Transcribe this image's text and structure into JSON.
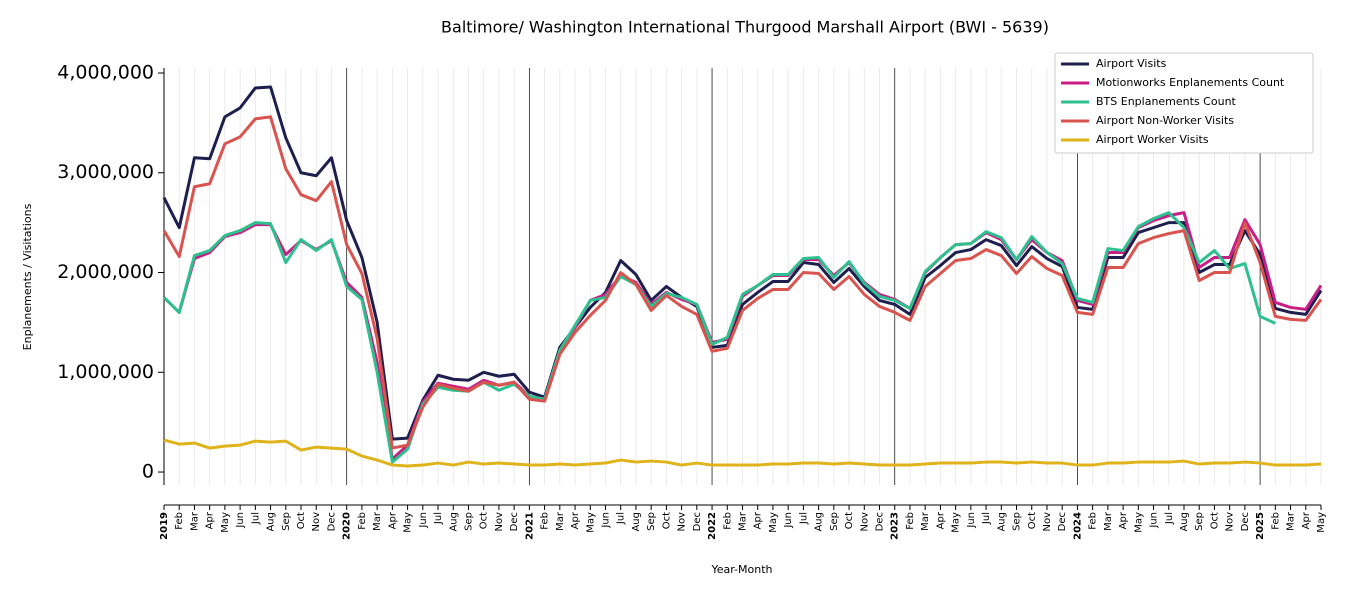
{
  "chart_data": {
    "type": "line",
    "title": "Baltimore/ Washington International Thurgood Marshall Airport (BWI - 5639)",
    "x_label": "Year-Month",
    "y_label": "Enplanements / Visitations",
    "categories": [
      "2019",
      "Feb",
      "Mar",
      "Apr",
      "May",
      "Jun",
      "Jul",
      "Aug",
      "Sep",
      "Oct",
      "Nov",
      "Dec",
      "2020",
      "Feb",
      "Mar",
      "Apr",
      "May",
      "Jun",
      "Jul",
      "Aug",
      "Sep",
      "Oct",
      "Nov",
      "Dec",
      "2021",
      "Feb",
      "Mar",
      "Apr",
      "May",
      "Jun",
      "Jul",
      "Aug",
      "Sep",
      "Oct",
      "Nov",
      "Dec",
      "2022",
      "Feb",
      "Mar",
      "Apr",
      "May",
      "Jun",
      "Jul",
      "Aug",
      "Sep",
      "Oct",
      "Nov",
      "Dec",
      "2023",
      "Feb",
      "Mar",
      "Apr",
      "May",
      "Jun",
      "Jul",
      "Aug",
      "Sep",
      "Oct",
      "Nov",
      "Dec",
      "2024",
      "Feb",
      "Mar",
      "Apr",
      "May",
      "Jun",
      "Jul",
      "Aug",
      "Sep",
      "Oct",
      "Nov",
      "Dec",
      "2025",
      "Feb",
      "Mar",
      "Apr",
      "May"
    ],
    "ylim": [
      -130000,
      4050000
    ],
    "yticks": [
      0,
      {
        "value": 1000000,
        "label": "1,000,000"
      },
      {
        "value": 2000000,
        "label": "2,000,000"
      },
      {
        "value": 3000000,
        "label": "3,000,000"
      },
      {
        "value": 4000000,
        "label": "4,000,000"
      }
    ],
    "grid": true,
    "legend": "upper right",
    "series": [
      {
        "name": "Airport Visits",
        "color": "#1f1f4f",
        "values": [
          2750000,
          2450000,
          3150000,
          3140000,
          3560000,
          3650000,
          3850000,
          3860000,
          3350000,
          3000000,
          2970000,
          3150000,
          2520000,
          2150000,
          1500000,
          330000,
          340000,
          720000,
          970000,
          930000,
          920000,
          1000000,
          960000,
          980000,
          800000,
          750000,
          1250000,
          1450000,
          1650000,
          1800000,
          2120000,
          1980000,
          1720000,
          1860000,
          1750000,
          1660000,
          1250000,
          1270000,
          1680000,
          1800000,
          1910000,
          1910000,
          2100000,
          2080000,
          1900000,
          2040000,
          1860000,
          1720000,
          1680000,
          1580000,
          1950000,
          2070000,
          2200000,
          2230000,
          2330000,
          2270000,
          2070000,
          2260000,
          2140000,
          2060000,
          1650000,
          1630000,
          2150000,
          2150000,
          2400000,
          2450000,
          2500000,
          2500000,
          2000000,
          2080000,
          2080000,
          2420000,
          2180000,
          1640000,
          1600000,
          1580000,
          1820000
        ]
      },
      {
        "name": "Motionworks Enplanements Count",
        "color": "#c81e87",
        "values": [
          1750000,
          1600000,
          2140000,
          2200000,
          2360000,
          2400000,
          2480000,
          2480000,
          2180000,
          2320000,
          2230000,
          2320000,
          1900000,
          1750000,
          1100000,
          130000,
          270000,
          700000,
          890000,
          860000,
          830000,
          920000,
          870000,
          900000,
          760000,
          730000,
          1220000,
          1450000,
          1720000,
          1780000,
          1970000,
          1900000,
          1680000,
          1800000,
          1730000,
          1680000,
          1300000,
          1330000,
          1760000,
          1870000,
          1970000,
          1970000,
          2130000,
          2130000,
          1970000,
          2100000,
          1900000,
          1780000,
          1730000,
          1640000,
          2000000,
          2150000,
          2280000,
          2290000,
          2400000,
          2330000,
          2130000,
          2330000,
          2200000,
          2120000,
          1720000,
          1680000,
          2200000,
          2200000,
          2450000,
          2520000,
          2570000,
          2600000,
          2050000,
          2150000,
          2150000,
          2530000,
          2280000,
          1700000,
          1650000,
          1630000,
          1870000
        ]
      },
      {
        "name": "BTS Enplanements Count",
        "color": "#2ec08e",
        "values": [
          1750000,
          1600000,
          2170000,
          2220000,
          2370000,
          2420000,
          2500000,
          2490000,
          2100000,
          2330000,
          2220000,
          2330000,
          1860000,
          1730000,
          1000000,
          100000,
          230000,
          680000,
          850000,
          820000,
          810000,
          900000,
          820000,
          880000,
          760000,
          730000,
          1220000,
          1470000,
          1720000,
          1750000,
          1960000,
          1880000,
          1660000,
          1790000,
          1750000,
          1680000,
          1280000,
          1350000,
          1780000,
          1870000,
          1980000,
          1980000,
          2140000,
          2150000,
          1950000,
          2110000,
          1890000,
          1760000,
          1720000,
          1640000,
          2010000,
          2150000,
          2280000,
          2290000,
          2410000,
          2350000,
          2130000,
          2360000,
          2200000,
          2090000,
          1740000,
          1700000,
          2240000,
          2220000,
          2460000,
          2540000,
          2600000,
          2450000,
          2100000,
          2220000,
          2040000,
          2090000,
          1560000,
          1490000,
          null,
          null,
          null
        ]
      },
      {
        "name": "Airport Non-Worker Visits",
        "color": "#d9534f",
        "values": [
          2420000,
          2160000,
          2860000,
          2890000,
          3290000,
          3360000,
          3540000,
          3560000,
          3040000,
          2780000,
          2720000,
          2910000,
          2280000,
          1990000,
          1340000,
          240000,
          270000,
          650000,
          880000,
          840000,
          810000,
          900000,
          870000,
          900000,
          730000,
          710000,
          1180000,
          1400000,
          1570000,
          1720000,
          2000000,
          1880000,
          1620000,
          1770000,
          1660000,
          1580000,
          1210000,
          1240000,
          1620000,
          1740000,
          1830000,
          1830000,
          2000000,
          1990000,
          1830000,
          1960000,
          1780000,
          1660000,
          1600000,
          1520000,
          1860000,
          1990000,
          2120000,
          2140000,
          2230000,
          2170000,
          1990000,
          2160000,
          2040000,
          1970000,
          1600000,
          1580000,
          2050000,
          2050000,
          2290000,
          2350000,
          2390000,
          2420000,
          1920000,
          2000000,
          2000000,
          2500000,
          2100000,
          1560000,
          1530000,
          1520000,
          1730000
        ]
      },
      {
        "name": "Airport Worker Visits",
        "color": "#e0b31a",
        "values": [
          320000,
          280000,
          290000,
          240000,
          260000,
          270000,
          310000,
          300000,
          310000,
          220000,
          250000,
          240000,
          230000,
          160000,
          120000,
          70000,
          60000,
          70000,
          90000,
          70000,
          100000,
          80000,
          90000,
          80000,
          70000,
          70000,
          80000,
          70000,
          80000,
          90000,
          120000,
          100000,
          110000,
          100000,
          70000,
          90000,
          70000,
          70000,
          70000,
          70000,
          80000,
          80000,
          90000,
          90000,
          80000,
          90000,
          80000,
          70000,
          70000,
          70000,
          80000,
          90000,
          90000,
          90000,
          100000,
          100000,
          90000,
          100000,
          90000,
          90000,
          70000,
          70000,
          90000,
          90000,
          100000,
          100000,
          100000,
          110000,
          80000,
          90000,
          90000,
          100000,
          90000,
          70000,
          70000,
          70000,
          80000
        ]
      }
    ]
  }
}
